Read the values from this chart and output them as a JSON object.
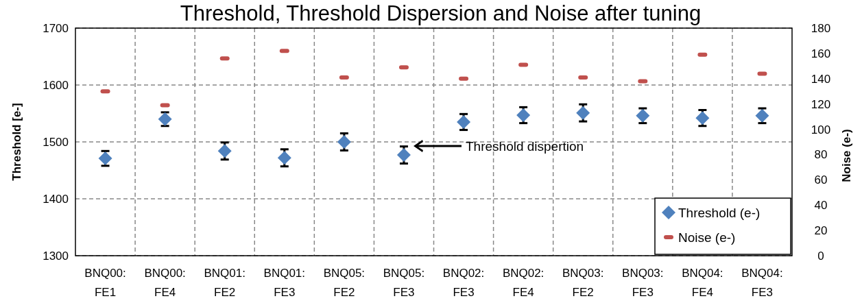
{
  "chart_data": {
    "type": "scatter",
    "title": "Threshold, Threshold Dispersion and Noise after tuning",
    "ylabel": "Threshold [e-]",
    "y2label": "Noise (e-)",
    "categories": [
      "BNQ00: FE1",
      "BNQ00: FE4",
      "BNQ01: FE2",
      "BNQ01: FE3",
      "BNQ05: FE2",
      "BNQ05: FE3",
      "BNQ02: FE3",
      "BNQ02: FE4",
      "BNQ03: FE2",
      "BNQ03: FE3",
      "BNQ04: FE4",
      "BNQ04: FE3"
    ],
    "series": [
      {
        "name": "Threshold (e-)",
        "color": "#4f81bd",
        "marker": "diamond",
        "values": [
          1471,
          1540,
          1484,
          1472,
          1500,
          1477,
          1535,
          1547,
          1551,
          1546,
          1542,
          1546
        ],
        "errors": [
          13,
          12,
          15,
          15,
          15,
          15,
          14,
          14,
          15,
          13,
          14,
          13
        ]
      },
      {
        "name": "Noise (e-)",
        "color": "#c0504d",
        "axis": "y2",
        "values": [
          130,
          119,
          156,
          162,
          141,
          149,
          140,
          151,
          141,
          138,
          159,
          144
        ]
      }
    ],
    "ylim": [
      1300,
      1700
    ],
    "yticks": [
      1300,
      1400,
      1500,
      1600,
      1700
    ],
    "y2lim": [
      0,
      180
    ],
    "y2ticks": [
      0,
      20,
      40,
      60,
      80,
      100,
      120,
      140,
      160,
      180
    ],
    "grid": true,
    "legend": "bottom right",
    "annotations": [
      "Threshold dispertion"
    ]
  }
}
